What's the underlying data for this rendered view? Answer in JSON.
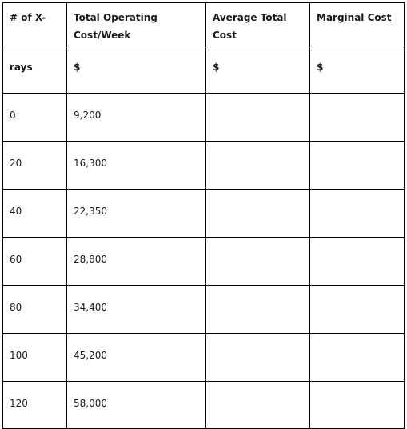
{
  "table": {
    "headers": [
      "# of X-",
      "Total Operating Cost/Week",
      "Average Total Cost",
      "Marginal Cost"
    ],
    "units_row": [
      "rays",
      "$",
      "$",
      "$"
    ],
    "rows": [
      [
        "0",
        "9,200",
        "",
        ""
      ],
      [
        "20",
        "16,300",
        "",
        ""
      ],
      [
        "40",
        "22,350",
        "",
        ""
      ],
      [
        "60",
        "28,800",
        "",
        ""
      ],
      [
        "80",
        "34,400",
        "",
        ""
      ],
      [
        "100",
        "45,200",
        "",
        ""
      ],
      [
        "120",
        "58,000",
        "",
        ""
      ]
    ]
  }
}
